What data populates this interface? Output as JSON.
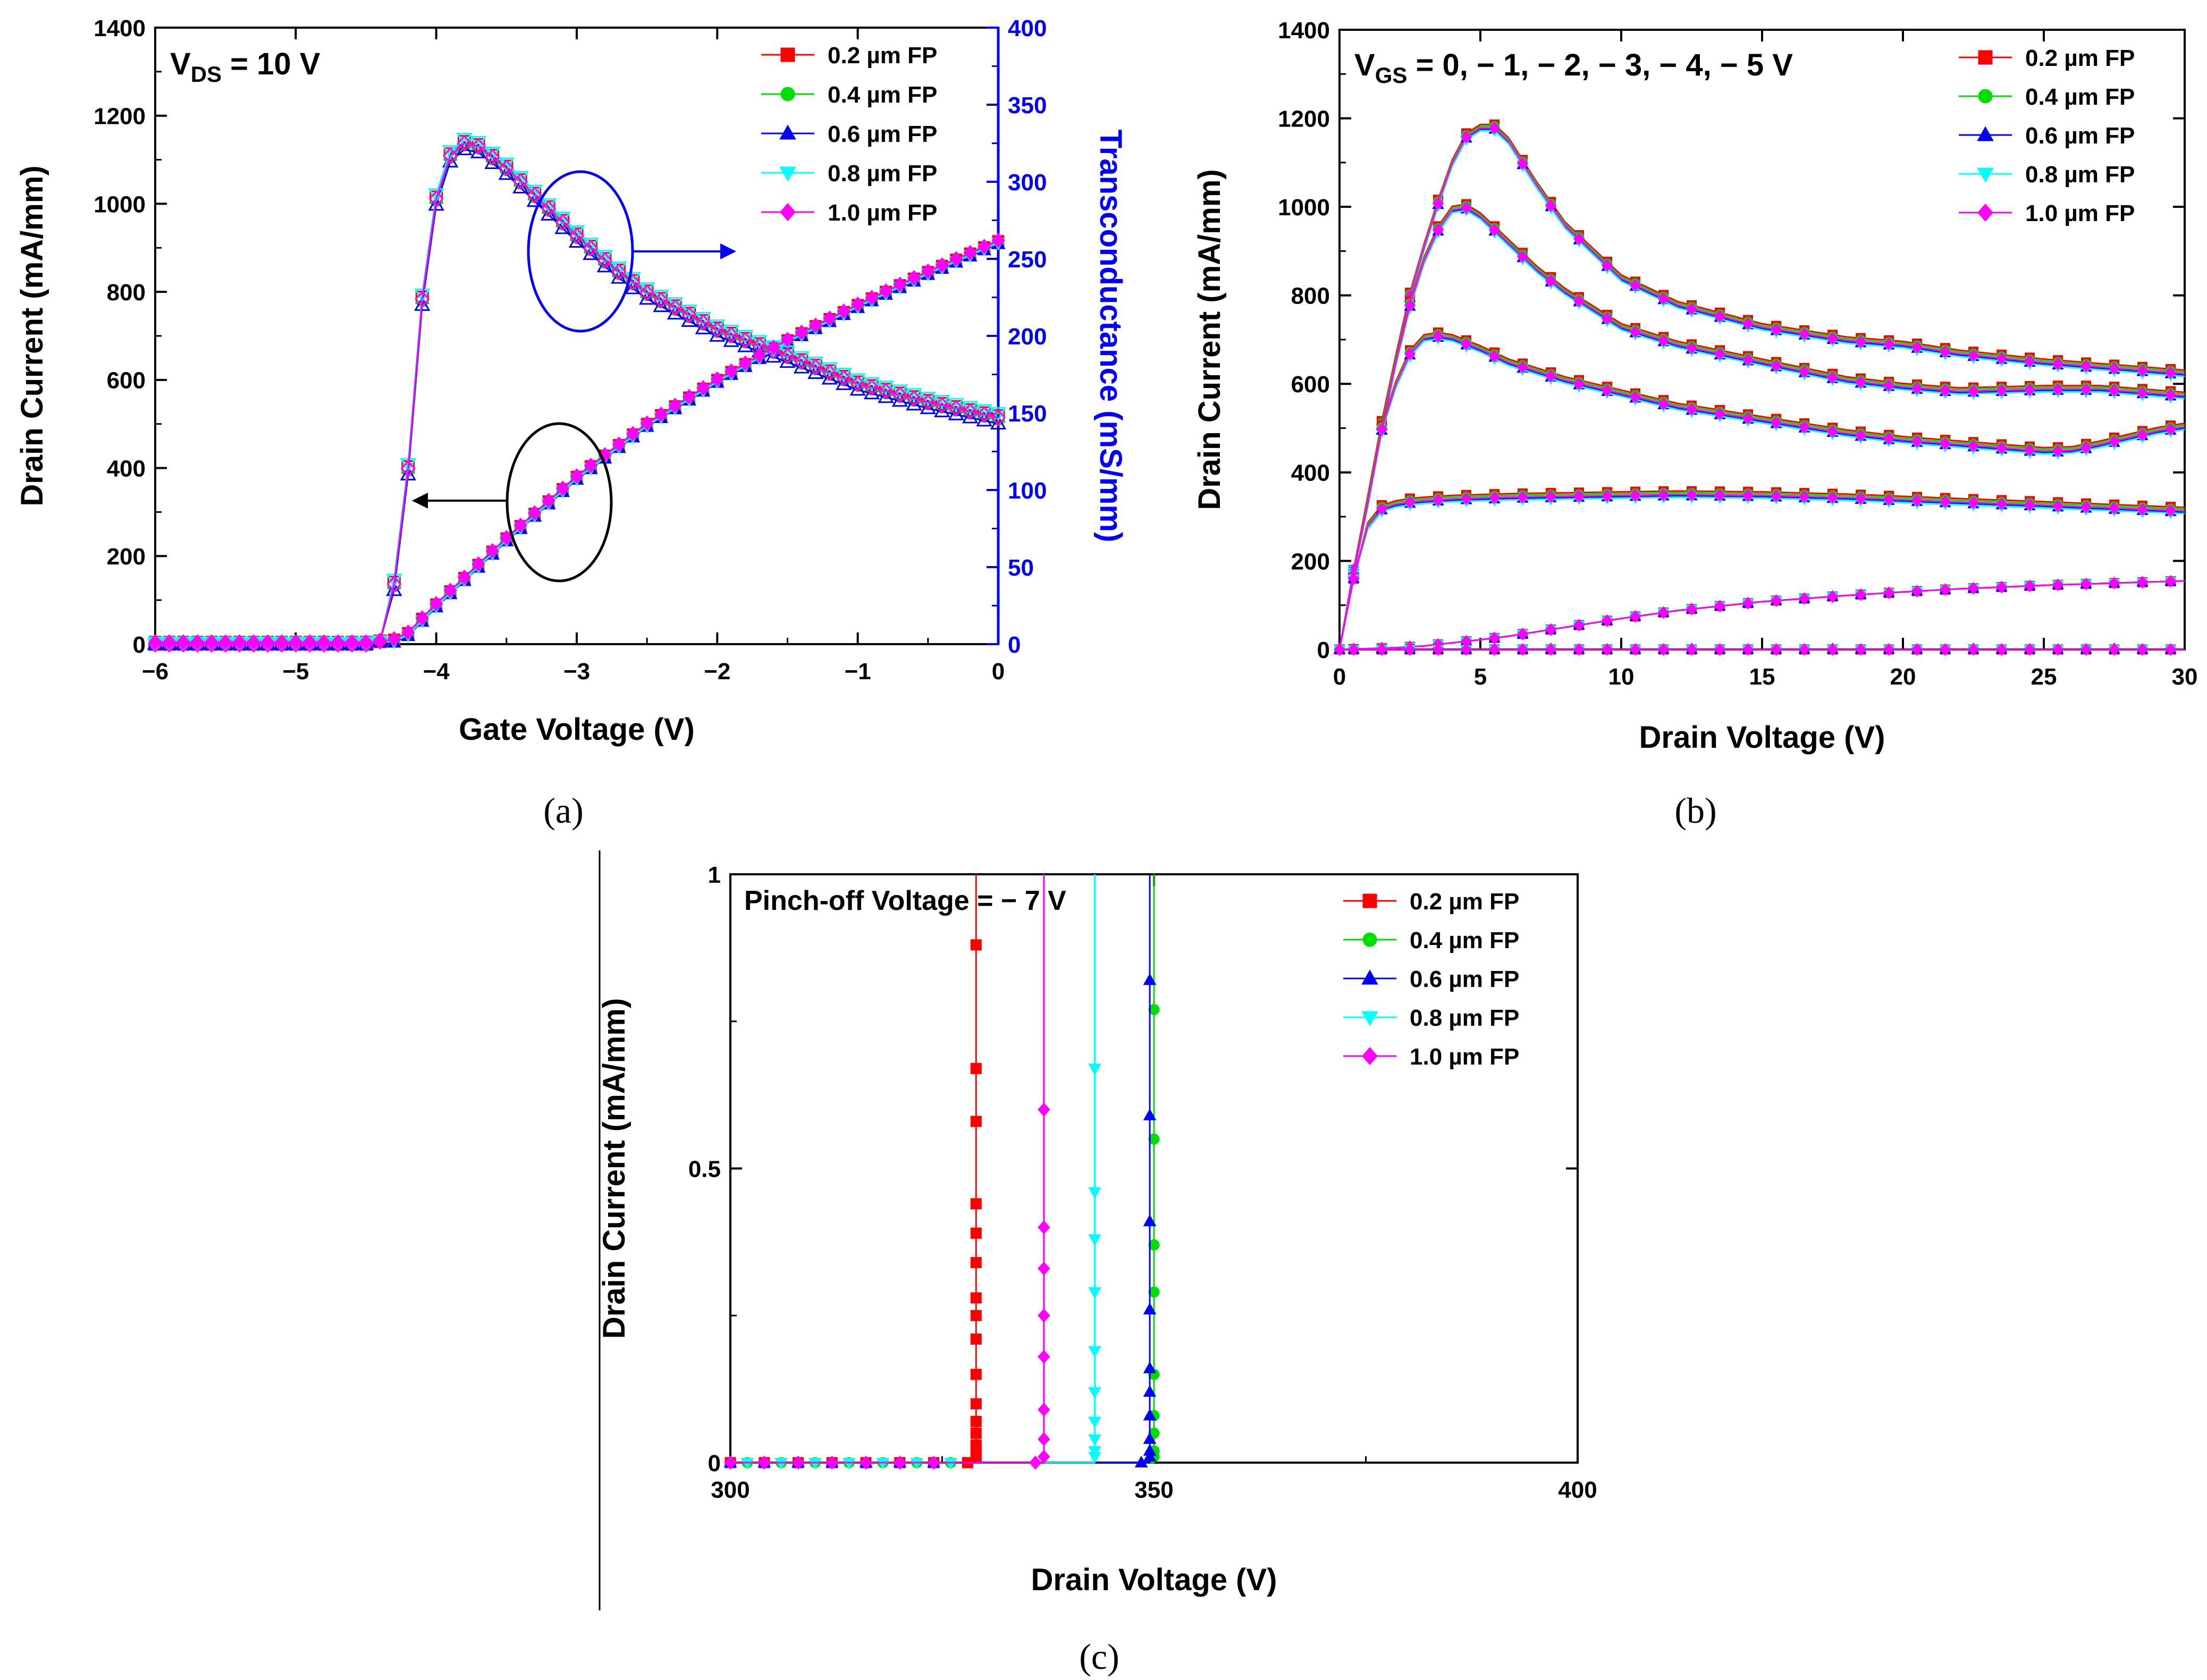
{
  "figure": {
    "subfigure_labels": [
      "(a)",
      "(b)",
      "(c)"
    ]
  },
  "legend_labels": [
    "0.2 µm FP",
    "0.4 µm FP",
    "0.6 µm FP",
    "0.8 µm FP",
    "1.0 µm FP"
  ],
  "series_colors": [
    "#ff0000",
    "#00dd00",
    "#0000ff",
    "#00ffff",
    "#ff00ff"
  ],
  "series_markers": [
    "square",
    "circle",
    "triangle-up",
    "triangle-down",
    "diamond"
  ],
  "chart_data": [
    {
      "id": "a",
      "type": "line",
      "annotation_main": "V",
      "annotation_sub": "DS",
      "annotation_rest": " = 10 V",
      "xlabel": "Gate Voltage (V)",
      "ylabel": "Drain Current (mA/mm)",
      "y2label": "Transconductance (mS/mm)",
      "xlim": [
        -6,
        0
      ],
      "ylim": [
        0,
        1400
      ],
      "y2lim": [
        0,
        400
      ],
      "xticks": [
        -6,
        -5,
        -4,
        -3,
        -2,
        -1,
        0
      ],
      "xtick_labels": [
        "−6",
        "−5",
        "−4",
        "−3",
        "−2",
        "−1",
        "0"
      ],
      "yticks": [
        0,
        200,
        400,
        600,
        800,
        1000,
        1200,
        1400
      ],
      "ytick_labels": [
        "0",
        "200",
        "400",
        "600",
        "800",
        "1000",
        "1200",
        "1400"
      ],
      "y2ticks": [
        0,
        50,
        100,
        150,
        200,
        250,
        300,
        350,
        400
      ],
      "y2tick_labels": [
        "0",
        "50",
        "100",
        "150",
        "200",
        "250",
        "300",
        "350",
        "400"
      ],
      "drain_current": {
        "x": [
          -6,
          -4.4,
          -4.3,
          -4.2,
          -4.0,
          -3.5,
          -3.0,
          -2.5,
          -2.0,
          -1.5,
          -1.0,
          -0.5,
          0
        ],
        "y": [
          5,
          5,
          10,
          25,
          90,
          240,
          380,
          500,
          600,
          690,
          770,
          845,
          915
        ]
      },
      "transconductance": {
        "x": [
          -6,
          -4.5,
          -4.4,
          -4.3,
          -4.2,
          -4.1,
          -4.0,
          -3.9,
          -3.8,
          -3.7,
          -3.5,
          -3.25,
          -3.0,
          -2.75,
          -2.5,
          -2.0,
          -1.5,
          -1.0,
          -0.5,
          0
        ],
        "y": [
          0,
          0,
          2,
          40,
          115,
          225,
          290,
          318,
          326,
          324,
          310,
          288,
          266,
          246,
          229,
          205,
          188,
          170,
          158,
          148
        ]
      },
      "series": [
        {
          "name": "0.2 µm FP",
          "id_offset": 0,
          "gm_offset": 0
        },
        {
          "name": "0.4 µm FP",
          "id_offset": -3,
          "gm_offset": -2
        },
        {
          "name": "0.6 µm FP",
          "id_offset": -6,
          "gm_offset": -5
        },
        {
          "name": "0.8 µm FP",
          "id_offset": -4,
          "gm_offset": 2
        },
        {
          "name": "1.0 µm FP",
          "id_offset": 2,
          "gm_offset": -1
        }
      ]
    },
    {
      "id": "b",
      "type": "line",
      "annotation_main": "V",
      "annotation_sub": "GS",
      "annotation_rest": " = 0, − 1, − 2, − 3, − 4, − 5 V",
      "xlabel": "Drain Voltage (V)",
      "ylabel": "Drain Current (mA/mm)",
      "xlim": [
        0,
        30
      ],
      "ylim": [
        0,
        1400
      ],
      "xticks": [
        0,
        5,
        10,
        15,
        20,
        25,
        30
      ],
      "xtick_labels": [
        "0",
        "5",
        "10",
        "15",
        "20",
        "25",
        "30"
      ],
      "yticks": [
        0,
        200,
        400,
        600,
        800,
        1000,
        1200,
        1400
      ],
      "ytick_labels": [
        "0",
        "200",
        "400",
        "600",
        "800",
        "1000",
        "1200",
        "1400"
      ],
      "curves": [
        {
          "vgs": "0",
          "x": [
            0,
            0.5,
            1,
            1.5,
            2,
            2.5,
            3,
            3.5,
            4,
            4.5,
            5,
            5.5,
            6,
            7,
            8,
            10,
            12,
            15,
            18,
            20,
            22,
            25,
            28,
            30
          ],
          "y": [
            0,
            180,
            340,
            510,
            660,
            800,
            910,
            1010,
            1100,
            1160,
            1180,
            1180,
            1150,
            1050,
            960,
            840,
            780,
            730,
            700,
            690,
            670,
            650,
            635,
            625
          ]
        },
        {
          "vgs": "-1",
          "x": [
            0,
            0.5,
            1,
            1.5,
            2,
            2.5,
            3,
            3.5,
            4,
            4.5,
            5,
            6,
            7,
            8,
            10,
            12,
            15,
            18,
            20,
            22,
            25,
            27,
            28,
            30
          ],
          "y": [
            0,
            175,
            330,
            500,
            650,
            780,
            880,
            950,
            995,
            1000,
            980,
            920,
            860,
            810,
            730,
            690,
            650,
            610,
            595,
            585,
            590,
            590,
            585,
            575
          ]
        },
        {
          "vgs": "-2",
          "x": [
            0,
            0.5,
            1,
            1.5,
            2,
            2.5,
            3,
            3.5,
            4,
            5,
            6,
            8,
            10,
            12,
            15,
            18,
            20,
            22,
            24,
            25,
            26,
            27,
            28,
            29,
            30
          ],
          "y": [
            0,
            170,
            330,
            500,
            600,
            670,
            705,
            710,
            705,
            680,
            650,
            610,
            580,
            550,
            520,
            490,
            475,
            465,
            455,
            450,
            452,
            465,
            480,
            495,
            505
          ]
        },
        {
          "vgs": "-3",
          "x": [
            0,
            0.5,
            1,
            1.5,
            2,
            2.5,
            3,
            4,
            5,
            6,
            8,
            10,
            12,
            15,
            18,
            20,
            22,
            25,
            28,
            30
          ],
          "y": [
            0,
            160,
            280,
            320,
            330,
            335,
            338,
            342,
            344,
            346,
            348,
            350,
            352,
            350,
            345,
            340,
            335,
            328,
            320,
            315
          ]
        },
        {
          "vgs": "-4",
          "x": [
            0,
            1,
            2,
            3,
            4,
            5,
            6,
            8,
            10,
            12,
            15,
            18,
            20,
            22,
            25,
            28,
            30
          ],
          "y": [
            0,
            2,
            4,
            8,
            15,
            22,
            30,
            50,
            70,
            88,
            108,
            122,
            130,
            137,
            145,
            151,
            155
          ]
        },
        {
          "vgs": "-5",
          "x": [
            0,
            30
          ],
          "y": [
            0,
            0
          ]
        }
      ],
      "series": [
        {
          "name": "0.2 µm FP",
          "offset": 6
        },
        {
          "name": "0.4 µm FP",
          "offset": 2
        },
        {
          "name": "0.6 µm FP",
          "offset": -5
        },
        {
          "name": "0.8 µm FP",
          "offset": -8
        },
        {
          "name": "1.0 µm FP",
          "offset": -2
        }
      ]
    },
    {
      "id": "c",
      "type": "scatter",
      "annotation": "Pinch-off Voltage = − 7 V",
      "xlabel": "Drain Voltage (V)",
      "ylabel": "Drain Current (mA/mm)",
      "xlim": [
        300,
        400
      ],
      "ylim": [
        0,
        1
      ],
      "xticks": [
        300,
        350,
        400
      ],
      "xtick_labels": [
        "300",
        "350",
        "400"
      ],
      "yticks": [
        0,
        0.5,
        1
      ],
      "ytick_labels": [
        "0",
        "0.5",
        "1"
      ],
      "series": [
        {
          "name": "0.2 µm FP",
          "breakdown_x": 329,
          "points_y": [
            0.01,
            0.02,
            0.03,
            0.05,
            0.07,
            0.1,
            0.15,
            0.21,
            0.25,
            0.28,
            0.34,
            0.39,
            0.44,
            0.58,
            0.67,
            0.88
          ]
        },
        {
          "name": "0.4 µm FP",
          "breakdown_x": 350,
          "points_y": [
            0.01,
            0.02,
            0.05,
            0.08,
            0.15,
            0.29,
            0.37,
            0.55,
            0.77
          ]
        },
        {
          "name": "0.6 µm FP",
          "breakdown_x": 349.5,
          "points_y": [
            0.01,
            0.02,
            0.04,
            0.08,
            0.12,
            0.16,
            0.26,
            0.41,
            0.59,
            0.82
          ]
        },
        {
          "name": "0.8 µm FP",
          "breakdown_x": 343,
          "points_y": [
            0.01,
            0.02,
            0.04,
            0.07,
            0.12,
            0.19,
            0.29,
            0.38,
            0.46,
            0.67
          ]
        },
        {
          "name": "1.0 µm FP",
          "breakdown_x": 337,
          "points_y": [
            0.01,
            0.04,
            0.09,
            0.18,
            0.25,
            0.33,
            0.4,
            0.6
          ]
        }
      ],
      "baseline_x": [
        300,
        302,
        304,
        306,
        308,
        310,
        312,
        314,
        316,
        318,
        320,
        322,
        324,
        326
      ]
    }
  ]
}
